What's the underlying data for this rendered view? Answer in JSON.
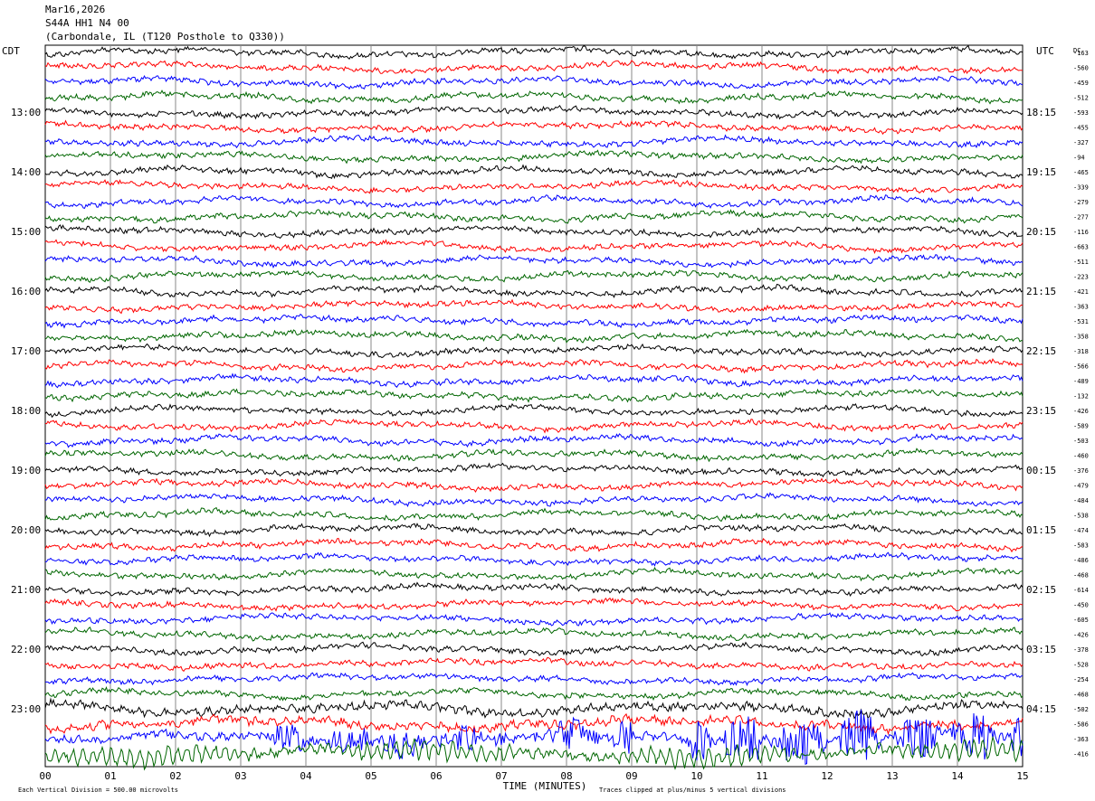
{
  "header": {
    "date": "Mar16,2026",
    "station": "S44A HH1 N4 00",
    "location": "(Carbondale, IL (T120 Posthole to Q330))"
  },
  "chart_data": {
    "type": "line",
    "title": "",
    "xlabel": "TIME (MINUTES)",
    "xlim": [
      0,
      15
    ],
    "x_ticks": [
      "00",
      "01",
      "02",
      "03",
      "04",
      "05",
      "06",
      "07",
      "08",
      "09",
      "10",
      "11",
      "12",
      "13",
      "14",
      "15"
    ],
    "left_axis_label": "CDT",
    "right_axis_label": "UTC",
    "dc_label": "DC",
    "left_time_labels": [
      "13:00",
      "14:00",
      "15:00",
      "16:00",
      "17:00",
      "18:00",
      "19:00",
      "20:00",
      "21:00",
      "22:00",
      "23:00"
    ],
    "right_time_labels": [
      "18:15",
      "19:15",
      "20:15",
      "21:15",
      "22:15",
      "23:15",
      "00:15",
      "01:15",
      "02:15",
      "03:15",
      "04:15"
    ],
    "trace_count": 48,
    "trace_colors": [
      "#000000",
      "#ff0000",
      "#0000ff",
      "#006600"
    ],
    "dc_offsets": [
      -163,
      -560,
      -459,
      -512,
      -593,
      -455,
      -327,
      -94,
      -465,
      -339,
      -279,
      -277,
      -116,
      -663,
      -511,
      -223,
      -421,
      -363,
      -531,
      -358,
      -318,
      -566,
      -489,
      -132,
      -426,
      -589,
      -503,
      -460,
      -376,
      -479,
      -484,
      -538,
      -474,
      -583,
      -486,
      -468,
      -614,
      -450,
      -605,
      -426,
      -378,
      -528,
      -254,
      -468,
      -502,
      -586,
      -363,
      -416
    ],
    "footer_left": "Each Vertical Division =  500.00 microvolts",
    "footer_right": "Traces clipped at plus/minus 5 vertical divisions",
    "grid": true
  }
}
